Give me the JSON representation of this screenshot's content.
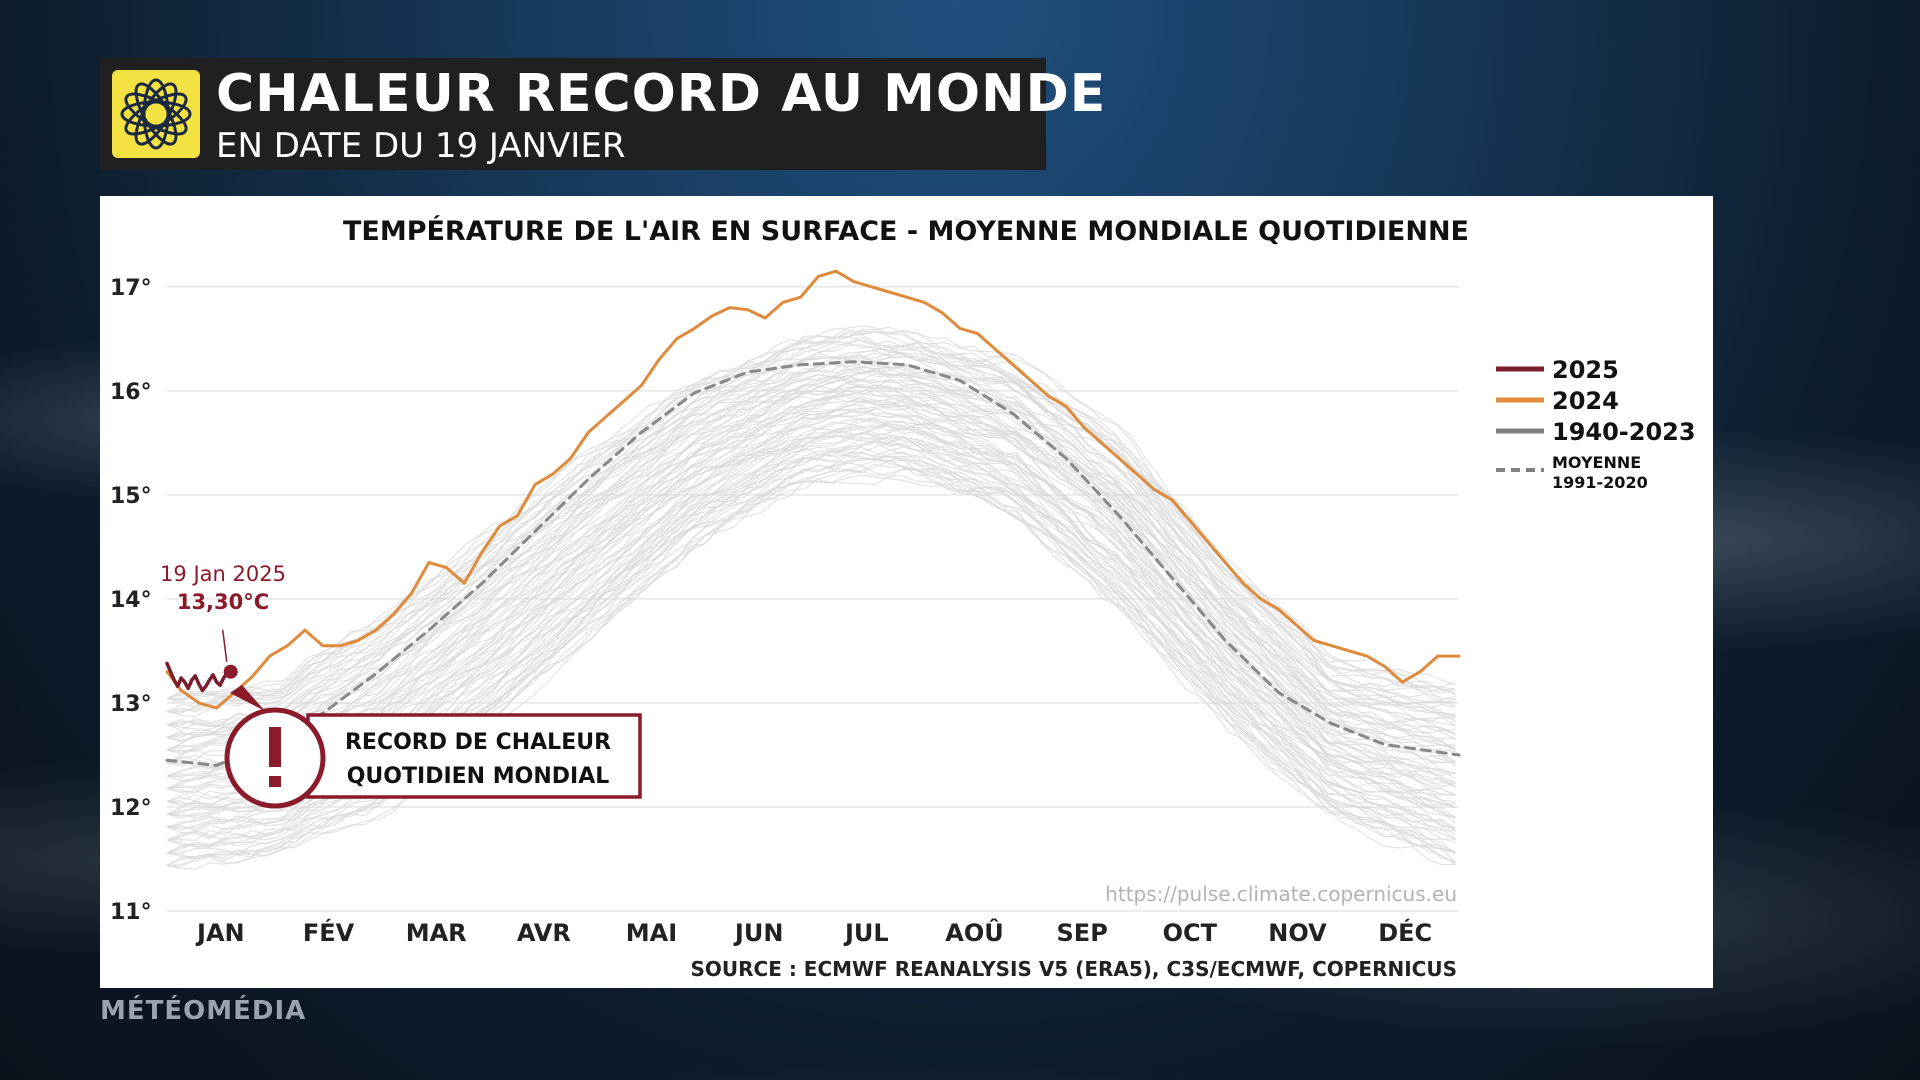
{
  "header": {
    "title": "CHALEUR RECORD AU MONDE",
    "subtitle": "EN DATE DU 19 JANVIER"
  },
  "brand": "MÉTÉOMÉDIA",
  "colors": {
    "series_2025": "#7b1e2b",
    "series_2024": "#e08a3c",
    "historical": "#d9d9d9",
    "mean": "#888888",
    "callout": "#8b1a2a",
    "logo_bg": "#f3e241"
  },
  "chart_data": {
    "type": "line",
    "title": "TEMPÉRATURE DE L'AIR EN SURFACE - MOYENNE MONDIALE QUOTIDIENNE",
    "xlabel": "",
    "ylabel": "",
    "y_unit": "°C",
    "ylim": [
      11,
      17.2
    ],
    "y_ticks": [
      11,
      12,
      13,
      14,
      15,
      16,
      17
    ],
    "y_tick_labels": [
      "11°",
      "12°",
      "13°",
      "14°",
      "15°",
      "16°",
      "17°"
    ],
    "x_axis": "day of year",
    "xlim": [
      1,
      366
    ],
    "months": [
      "JAN",
      "FÉV",
      "MAR",
      "AVR",
      "MAI",
      "JUN",
      "JUL",
      "AOÛ",
      "SEP",
      "OCT",
      "NOV",
      "DÉC"
    ],
    "grid": true,
    "legend_position": "right",
    "legend": [
      {
        "label": "2025",
        "style": "solid",
        "color": "#7b1e2b"
      },
      {
        "label": "2024",
        "style": "solid",
        "color": "#e08a3c"
      },
      {
        "label": "1940-2023",
        "style": "solid",
        "color": "#808080"
      },
      {
        "label": "MOYENNE",
        "label2": "1991-2020",
        "style": "dashed",
        "color": "#808080"
      }
    ],
    "series": [
      {
        "name": "2025",
        "x": [
          1,
          2,
          3,
          4,
          5,
          6,
          7,
          8,
          9,
          10,
          11,
          12,
          13,
          14,
          15,
          16,
          17,
          18,
          19
        ],
        "y": [
          13.38,
          13.3,
          13.22,
          13.16,
          13.24,
          13.2,
          13.14,
          13.22,
          13.26,
          13.18,
          13.12,
          13.16,
          13.22,
          13.27,
          13.2,
          13.17,
          13.24,
          13.29,
          13.3
        ]
      },
      {
        "name": "2024",
        "x": [
          1,
          5,
          10,
          15,
          20,
          25,
          30,
          35,
          40,
          45,
          50,
          55,
          60,
          65,
          70,
          75,
          80,
          85,
          90,
          95,
          100,
          105,
          110,
          115,
          120,
          125,
          130,
          135,
          140,
          145,
          150,
          155,
          160,
          165,
          170,
          175,
          180,
          185,
          190,
          195,
          200,
          205,
          210,
          215,
          220,
          225,
          230,
          235,
          240,
          245,
          250,
          255,
          260,
          265,
          270,
          275,
          280,
          285,
          290,
          295,
          300,
          305,
          310,
          315,
          320,
          325,
          330,
          335,
          340,
          345,
          350,
          355,
          360,
          366
        ],
        "y": [
          13.3,
          13.12,
          13.0,
          12.95,
          13.1,
          13.25,
          13.45,
          13.55,
          13.7,
          13.55,
          13.55,
          13.6,
          13.7,
          13.85,
          14.05,
          14.35,
          14.3,
          14.15,
          14.45,
          14.7,
          14.8,
          15.1,
          15.2,
          15.35,
          15.6,
          15.75,
          15.9,
          16.05,
          16.3,
          16.5,
          16.6,
          16.72,
          16.8,
          16.78,
          16.7,
          16.85,
          16.9,
          17.1,
          17.15,
          17.05,
          17.0,
          16.95,
          16.9,
          16.85,
          16.75,
          16.6,
          16.55,
          16.4,
          16.25,
          16.1,
          15.95,
          15.85,
          15.65,
          15.5,
          15.35,
          15.2,
          15.05,
          14.95,
          14.75,
          14.55,
          14.35,
          14.15,
          14.0,
          13.9,
          13.75,
          13.6,
          13.55,
          13.5,
          13.45,
          13.35,
          13.2,
          13.3,
          13.45,
          13.45
        ]
      },
      {
        "name": "MOYENNE 1991-2020",
        "x": [
          1,
          15,
          30,
          45,
          60,
          75,
          90,
          105,
          120,
          135,
          150,
          165,
          180,
          195,
          210,
          225,
          240,
          255,
          270,
          285,
          300,
          315,
          330,
          345,
          366
        ],
        "y": [
          12.45,
          12.4,
          12.62,
          12.9,
          13.28,
          13.7,
          14.15,
          14.65,
          15.15,
          15.6,
          15.98,
          16.18,
          16.25,
          16.28,
          16.25,
          16.1,
          15.78,
          15.35,
          14.8,
          14.2,
          13.6,
          13.1,
          12.8,
          12.6,
          12.5
        ]
      }
    ],
    "historical_band": {
      "name": "1940-2023",
      "x": [
        1,
        30,
        60,
        90,
        120,
        150,
        180,
        195,
        210,
        240,
        270,
        300,
        330,
        366
      ],
      "y_low": [
        11.4,
        11.5,
        11.9,
        12.7,
        13.6,
        14.5,
        15.1,
        15.2,
        15.2,
        14.8,
        13.9,
        12.8,
        11.9,
        11.4
      ],
      "y_high": [
        13.1,
        13.2,
        13.8,
        14.6,
        15.4,
        16.1,
        16.5,
        16.6,
        16.55,
        16.3,
        15.6,
        14.4,
        13.4,
        13.2
      ]
    },
    "annotations": {
      "point_label_date": "19 Jan 2025",
      "point_label_value": "13,30°C",
      "point_x": 19,
      "point_y": 13.3,
      "callout_line1": "RECORD DE CHALEUR",
      "callout_line2": "QUOTIDIEN MONDIAL",
      "callout_icon": "exclamation-icon",
      "url": "https://pulse.climate.copernicus.eu",
      "source": "SOURCE : ECMWF REANALYSIS V5 (ERA5), C3S/ECMWF, COPERNICUS"
    }
  }
}
